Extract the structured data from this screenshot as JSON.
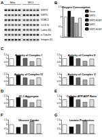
{
  "panel_labels": [
    "A",
    "B",
    "C",
    "D",
    "E",
    "F",
    "G"
  ],
  "blot": {
    "lane_groups": [
      "Mito",
      "WCL"
    ],
    "rows": [
      "SIRT3",
      "SIRT5",
      "VDAC1",
      "COX IV",
      "Lamin B1",
      "α-Tubulin",
      "Integrin-β1"
    ]
  },
  "chart_data": [
    {
      "type": "bar",
      "title": "Oxygen Consumption",
      "categories": [
        null
      ],
      "series": [
        {
          "name": "Vector",
          "color": "#ffffff",
          "values": [
            1.0
          ]
        },
        {
          "name": "SIRT3",
          "color": "#000000",
          "values": [
            1.3
          ]
        },
        {
          "name": "SIRT3 H248Y",
          "color": "#666666",
          "values": [
            1.0
          ]
        },
        {
          "name": "SIRT5",
          "color": "#aaaaaa",
          "values": [
            0.7
          ]
        },
        {
          "name": "SIRT5 H158Y",
          "color": "#dddddd",
          "values": [
            0.95
          ]
        }
      ],
      "ylim": [
        0,
        1.5
      ],
      "yticks": [
        0,
        0.5,
        1,
        1.5
      ],
      "legend": "right"
    },
    {
      "type": "bar",
      "title": "Activity of Complex I",
      "categories": [
        null,
        null,
        null,
        null,
        null
      ],
      "values": [
        1.0,
        1.4,
        1.05,
        0.6,
        1.0
      ],
      "colors": [
        "#ffffff",
        "#000000",
        "#666666",
        "#aaaaaa",
        "#dddddd"
      ],
      "ylim": [
        0,
        1.5
      ],
      "yticks": [
        0,
        0.5,
        1,
        1.5
      ]
    },
    {
      "type": "bar",
      "title": "Activity of Complex II",
      "categories": [
        null,
        null,
        null,
        null,
        null
      ],
      "values": [
        1.0,
        1.3,
        1.0,
        0.65,
        0.95
      ],
      "colors": [
        "#ffffff",
        "#000000",
        "#666666",
        "#aaaaaa",
        "#dddddd"
      ],
      "ylim": [
        0,
        1.5
      ],
      "yticks": [
        0,
        0.5,
        1,
        1.5
      ]
    },
    {
      "type": "bar",
      "title": "Activity of Complex IV",
      "categories": [
        null,
        null,
        null,
        null,
        null
      ],
      "values": [
        1.0,
        1.35,
        1.0,
        0.7,
        1.0
      ],
      "colors": [
        "#ffffff",
        "#000000",
        "#666666",
        "#aaaaaa",
        "#dddddd"
      ],
      "ylim": [
        0,
        1.5
      ],
      "yticks": [
        0,
        0.5,
        1,
        1.5
      ]
    },
    {
      "type": "bar",
      "title": "Activity of Complex V",
      "categories": [
        null,
        null,
        null,
        null,
        null
      ],
      "values": [
        1.0,
        1.25,
        1.0,
        0.7,
        0.95
      ],
      "colors": [
        "#ffffff",
        "#000000",
        "#666666",
        "#aaaaaa",
        "#dddddd"
      ],
      "ylim": [
        0,
        1.5
      ],
      "yticks": [
        0,
        0.5,
        1,
        1.5
      ]
    },
    {
      "type": "bar",
      "title": "JC-1 Aggregate",
      "categories": [
        null,
        null,
        null,
        null,
        null
      ],
      "values": [
        1.0,
        1.3,
        1.0,
        0.6,
        0.95
      ],
      "colors": [
        "#ffffff",
        "#000000",
        "#666666",
        "#aaaaaa",
        "#dddddd"
      ],
      "ylim": [
        0,
        1.5
      ],
      "yticks": [
        0,
        0.5,
        1,
        1.5
      ]
    },
    {
      "type": "bar",
      "title": "Cellular ATP/ADP Ratio",
      "categories": [
        null,
        null,
        null,
        null,
        null
      ],
      "values": [
        1.0,
        1.4,
        1.0,
        0.65,
        1.0
      ],
      "colors": [
        "#ffffff",
        "#000000",
        "#666666",
        "#aaaaaa",
        "#dddddd"
      ],
      "ylim": [
        0,
        1.5
      ],
      "yticks": [
        0,
        0.5,
        1,
        1.5
      ]
    },
    {
      "type": "bar",
      "title": "Glucose Uptake",
      "categories": [
        null,
        null,
        null,
        null,
        null
      ],
      "values": [
        1.0,
        0.7,
        1.0,
        1.35,
        1.05
      ],
      "colors": [
        "#ffffff",
        "#000000",
        "#666666",
        "#aaaaaa",
        "#dddddd"
      ],
      "ylim": [
        0,
        1.5
      ],
      "yticks": [
        0,
        0.5,
        1,
        1.5
      ]
    },
    {
      "type": "bar",
      "title": "Lactate Production",
      "categories": [
        null,
        null,
        null,
        null,
        null
      ],
      "values": [
        1.0,
        0.75,
        1.0,
        1.4,
        1.0
      ],
      "colors": [
        "#ffffff",
        "#000000",
        "#666666",
        "#aaaaaa",
        "#dddddd"
      ],
      "ylim": [
        0,
        1.5
      ],
      "yticks": [
        0,
        0.5,
        1,
        1.5
      ]
    }
  ]
}
